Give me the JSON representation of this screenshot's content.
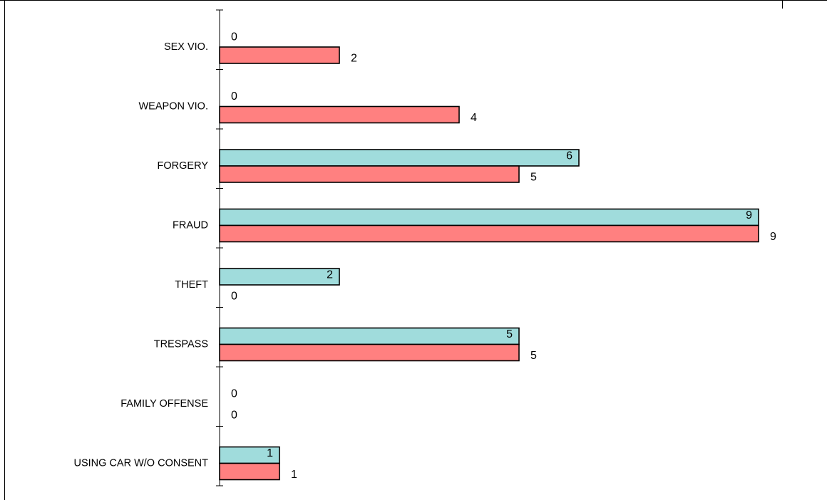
{
  "chart_data": {
    "type": "bar",
    "orientation": "horizontal",
    "title": "",
    "xlabel": "",
    "ylabel": "",
    "categories": [
      "SEX VIO.",
      "WEAPON VIO.",
      "FORGERY",
      "FRAUD",
      "THEFT",
      "TRESPASS",
      "FAMILY OFFENSE",
      "USING CAR W/O CONSENT"
    ],
    "series": [
      {
        "values": [
          0,
          0,
          6,
          9,
          2,
          5,
          0,
          1
        ],
        "color": "#a0dcdc"
      },
      {
        "values": [
          2,
          4,
          5,
          9,
          0,
          5,
          0,
          1
        ],
        "color": "#ff8080"
      }
    ],
    "xlim": [
      0,
      10
    ],
    "grid": false,
    "legend": "none",
    "data_labels": true
  }
}
